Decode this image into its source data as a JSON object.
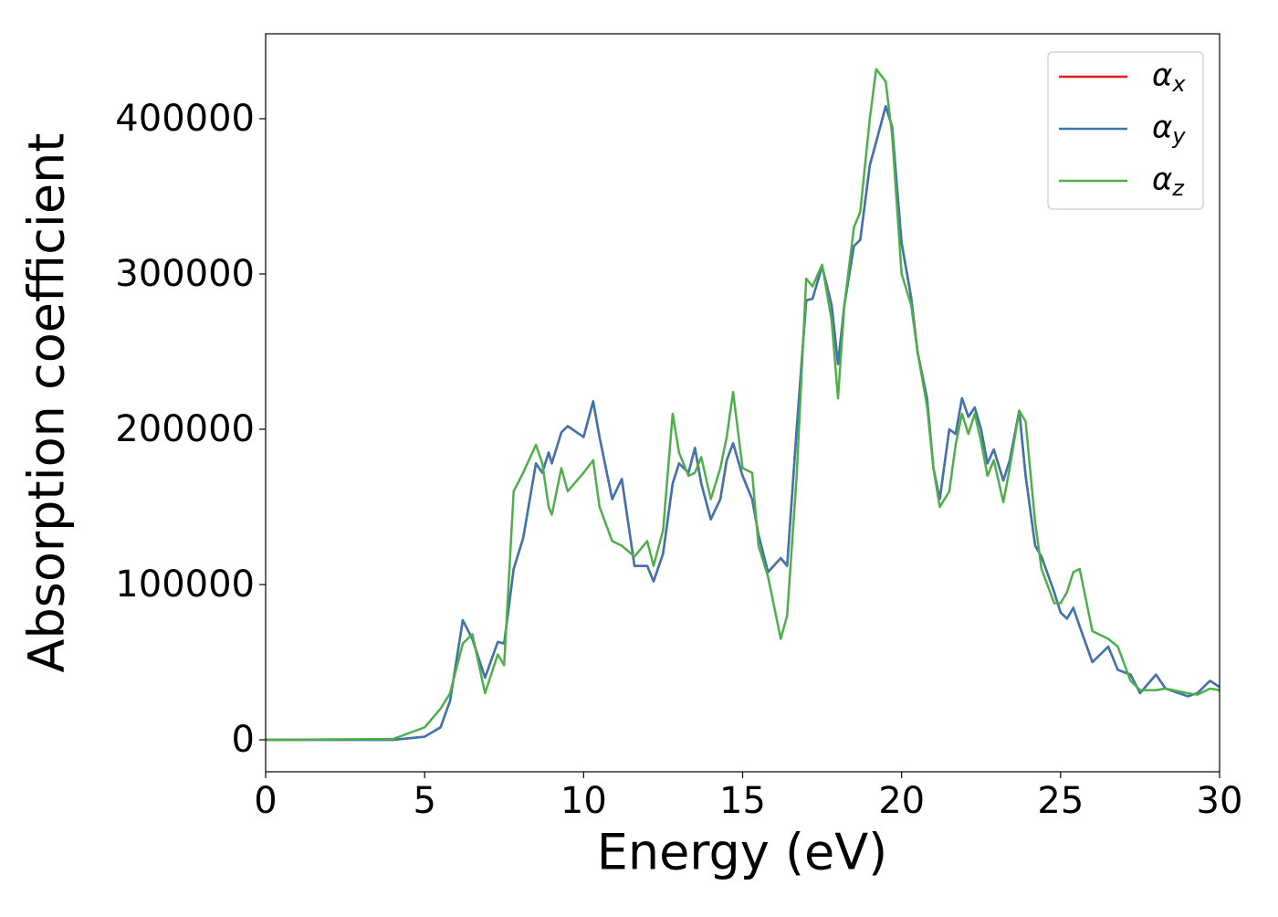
{
  "chart_data": {
    "type": "line",
    "xlabel": "Energy (eV)",
    "ylabel": "Absorption coefficient",
    "x": [
      0,
      4,
      5,
      5.5,
      5.8,
      6.2,
      6.5,
      6.9,
      7.3,
      7.5,
      7.8,
      8.1,
      8.5,
      8.7,
      8.9,
      9.0,
      9.3,
      9.5,
      10.0,
      10.3,
      10.5,
      10.9,
      11.2,
      11.6,
      12.0,
      12.2,
      12.5,
      12.8,
      13.0,
      13.3,
      13.5,
      13.7,
      14.0,
      14.3,
      14.5,
      14.7,
      15.0,
      15.3,
      15.5,
      15.8,
      16.2,
      16.4,
      16.7,
      17.0,
      17.2,
      17.5,
      17.8,
      18.0,
      18.2,
      18.5,
      18.7,
      19.0,
      19.2,
      19.5,
      19.7,
      20.0,
      20.3,
      20.5,
      20.8,
      21.0,
      21.2,
      21.5,
      21.7,
      21.9,
      22.1,
      22.3,
      22.5,
      22.7,
      22.9,
      23.2,
      23.4,
      23.7,
      23.9,
      24.2,
      24.4,
      24.8,
      25.0,
      25.2,
      25.4,
      25.6,
      26.0,
      26.5,
      26.8,
      27.2,
      27.5,
      28.0,
      28.3,
      29.0,
      29.3,
      29.7,
      30
    ],
    "series": [
      {
        "name": "αx",
        "color": "#e41a1c",
        "values": [
          0,
          0,
          2000,
          8000,
          25000,
          77000,
          65000,
          40000,
          63000,
          62000,
          110000,
          130000,
          178000,
          172000,
          185000,
          178000,
          198000,
          202000,
          195000,
          218000,
          195000,
          155000,
          168000,
          112000,
          112000,
          102000,
          120000,
          165000,
          178000,
          172000,
          188000,
          165000,
          142000,
          155000,
          180000,
          191000,
          170000,
          155000,
          132000,
          108000,
          117000,
          112000,
          200000,
          283000,
          284000,
          305000,
          280000,
          242000,
          280000,
          318000,
          322000,
          370000,
          385000,
          408000,
          395000,
          320000,
          285000,
          250000,
          220000,
          175000,
          155000,
          200000,
          197000,
          220000,
          208000,
          214000,
          200000,
          178000,
          187000,
          167000,
          180000,
          212000,
          170000,
          125000,
          118000,
          95000,
          82000,
          78000,
          85000,
          73000,
          50000,
          60000,
          45000,
          42000,
          30000,
          42000,
          33000,
          28000,
          30000,
          38000,
          34000
        ]
      },
      {
        "name": "αy",
        "color": "#3a76af",
        "values": [
          0,
          0,
          2000,
          8000,
          25000,
          77000,
          65000,
          40000,
          63000,
          62000,
          110000,
          130000,
          178000,
          172000,
          185000,
          178000,
          198000,
          202000,
          195000,
          218000,
          195000,
          155000,
          168000,
          112000,
          112000,
          102000,
          120000,
          165000,
          178000,
          172000,
          188000,
          165000,
          142000,
          155000,
          180000,
          191000,
          170000,
          155000,
          132000,
          108000,
          117000,
          112000,
          200000,
          283000,
          284000,
          305000,
          280000,
          242000,
          280000,
          318000,
          322000,
          370000,
          385000,
          408000,
          395000,
          320000,
          285000,
          250000,
          220000,
          175000,
          155000,
          200000,
          197000,
          220000,
          208000,
          214000,
          200000,
          178000,
          187000,
          167000,
          180000,
          212000,
          170000,
          125000,
          118000,
          95000,
          82000,
          78000,
          85000,
          73000,
          50000,
          60000,
          45000,
          42000,
          30000,
          42000,
          33000,
          28000,
          30000,
          38000,
          34000
        ]
      },
      {
        "name": "αz",
        "color": "#4daf4a",
        "values": [
          0,
          500,
          8000,
          20000,
          30000,
          62000,
          68000,
          30000,
          55000,
          48000,
          160000,
          172000,
          190000,
          178000,
          150000,
          145000,
          175000,
          160000,
          172000,
          180000,
          150000,
          128000,
          125000,
          118000,
          128000,
          112000,
          135000,
          210000,
          185000,
          170000,
          172000,
          182000,
          155000,
          175000,
          195000,
          224000,
          175000,
          172000,
          125000,
          105000,
          65000,
          80000,
          170000,
          297000,
          292000,
          306000,
          270000,
          220000,
          280000,
          330000,
          340000,
          400000,
          432000,
          424000,
          390000,
          300000,
          280000,
          250000,
          215000,
          175000,
          150000,
          160000,
          190000,
          210000,
          197000,
          210000,
          192000,
          170000,
          180000,
          153000,
          175000,
          212000,
          205000,
          140000,
          110000,
          88000,
          88000,
          95000,
          108000,
          110000,
          70000,
          65000,
          60000,
          38000,
          32000,
          32000,
          33000,
          30000,
          29000,
          33000,
          32000
        ]
      }
    ],
    "xlim": [
      0,
      30
    ],
    "xticks": [
      0,
      5,
      10,
      15,
      20,
      25,
      30
    ],
    "ylim": [
      -20600,
      454700
    ],
    "yticks": [
      0,
      100000,
      200000,
      300000,
      400000
    ],
    "grid": false,
    "legend": "upper right"
  }
}
